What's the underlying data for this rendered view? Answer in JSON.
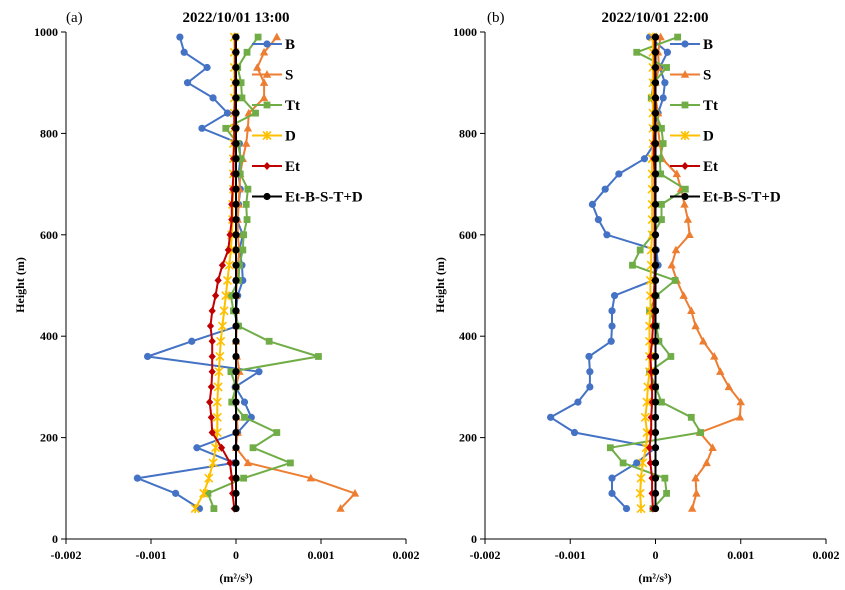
{
  "chart_data": [
    {
      "type": "line",
      "panel_label": "(a)",
      "title": "2022/10/01 13:00",
      "xlabel": "(m²/s³)",
      "ylabel": "Height (m)",
      "xlim": [
        -0.002,
        0.002
      ],
      "ylim": [
        0,
        1000
      ],
      "x_ticks": [
        "-0.002",
        "-0.001",
        "0",
        "0.001",
        "0.002"
      ],
      "y_ticks": [
        "0",
        "200",
        "400",
        "600",
        "800",
        "1000"
      ],
      "grid": false,
      "legend_position": "top-right",
      "heights": [
        60,
        90,
        120,
        150,
        180,
        210,
        240,
        270,
        300,
        330,
        360,
        390,
        420,
        450,
        480,
        510,
        540,
        570,
        600,
        630,
        660,
        690,
        720,
        750,
        780,
        810,
        840,
        870,
        900,
        930,
        960,
        990
      ],
      "series": [
        {
          "name": "B",
          "color": "#4472C4",
          "marker": "circle",
          "values": [
            -0.00043,
            -0.00071,
            -0.00116,
            -2e-05,
            -0.00046,
            2e-05,
            0.00018,
            0.0001,
            -1e-05,
            0.00027,
            -0.00104,
            -0.00052,
            2e-05,
            0.0,
            2e-05,
            8e-05,
            7e-05,
            4e-05,
            8e-05,
            1e-05,
            3e-05,
            5e-05,
            3e-05,
            5e-05,
            4e-05,
            -0.0004,
            -0.0001,
            -0.00027,
            -0.00057,
            -0.00034,
            -0.00061,
            -0.00066
          ]
        },
        {
          "name": "S",
          "color": "#ED7D31",
          "marker": "triangle",
          "values": [
            0.00123,
            0.0014,
            0.00088,
            0.00014,
            0.0,
            2e-05,
            1e-05,
            -1e-05,
            0.0,
            4e-05,
            1e-05,
            0.0,
            1e-05,
            0.0,
            0.0,
            1e-05,
            2e-05,
            4e-05,
            2e-05,
            2e-05,
            3e-05,
            4e-05,
            5e-05,
            8e-05,
            0.00012,
            0.00014,
            0.00015,
            0.00033,
            0.00033,
            0.00025,
            0.00033,
            0.00048
          ]
        },
        {
          "name": "Tt",
          "color": "#70AD47",
          "marker": "square",
          "values": [
            -0.00026,
            -0.00033,
            9e-05,
            0.00064,
            0.0002,
            0.00048,
            0.0001,
            -5e-05,
            0.0,
            -6e-05,
            0.00097,
            0.00039,
            3e-05,
            -3e-05,
            -6e-05,
            3e-05,
            4e-05,
            8e-05,
            9e-05,
            0.00013,
            0.00012,
            0.00014,
            5e-05,
            6e-05,
            2e-05,
            -0.00012,
            0.00023,
            7e-05,
            6e-05,
            2e-05,
            0.00013,
            0.00026
          ]
        },
        {
          "name": "D",
          "color": "#FFC000",
          "marker": "star",
          "values": [
            -0.00048,
            -0.00038,
            -0.00032,
            -0.00027,
            -0.00024,
            -0.00022,
            -0.00022,
            -0.00022,
            -0.00021,
            -0.0002,
            -0.00019,
            -0.00018,
            -0.00016,
            -0.00014,
            -0.00012,
            -0.0001,
            -8e-05,
            -6e-05,
            -5e-05,
            -4e-05,
            -4e-05,
            -3e-05,
            -3e-05,
            -3e-05,
            -3e-05,
            -2e-05,
            -2e-05,
            -2e-05,
            -2e-05,
            -2e-05,
            -2e-05,
            -2e-05
          ]
        },
        {
          "name": "Et",
          "color": "#C00000",
          "marker": "diamond",
          "values": [
            -2e-05,
            -4e-05,
            -5e-05,
            -7e-05,
            -0.00017,
            -0.00028,
            -0.00029,
            -0.00031,
            -0.00029,
            -0.00028,
            -0.00028,
            -0.00028,
            -0.0003,
            -0.00028,
            -0.00024,
            -0.00021,
            -0.00016,
            -9e-05,
            -7e-05,
            -5e-05,
            -5e-05,
            -4e-05,
            -3e-05,
            -3e-05,
            -2e-05,
            -2e-05,
            -2e-05,
            -1e-05,
            -1e-05,
            -1e-05,
            -1e-05,
            -1e-05
          ]
        },
        {
          "name": "Et-B-S-T+D",
          "color": "#000000",
          "marker": "circle",
          "values": [
            0.0,
            0.0,
            0.0,
            0.0,
            0.0,
            0.0,
            0.0,
            0.0,
            0.0,
            0.0,
            0.0,
            0.0,
            0.0,
            0.0,
            0.0,
            0.0,
            0.0,
            0.0,
            0.0,
            0.0,
            0.0,
            0.0,
            0.0,
            0.0,
            0.0,
            0.0,
            0.0,
            0.0,
            0.0,
            0.0,
            0.0,
            0.0
          ]
        }
      ]
    },
    {
      "type": "line",
      "panel_label": "(b)",
      "title": "2022/10/01 22:00",
      "xlabel": "(m²/s³)",
      "ylabel": "Height (m)",
      "xlim": [
        -0.002,
        0.002
      ],
      "ylim": [
        0,
        1000
      ],
      "x_ticks": [
        "-0.002",
        "-0.001",
        "0",
        "0.001",
        "0.002"
      ],
      "y_ticks": [
        "0",
        "200",
        "400",
        "600",
        "800",
        "1000"
      ],
      "grid": false,
      "legend_position": "top-right",
      "heights": [
        60,
        90,
        120,
        150,
        180,
        210,
        240,
        270,
        300,
        330,
        360,
        390,
        420,
        450,
        480,
        510,
        540,
        570,
        600,
        630,
        660,
        690,
        720,
        750,
        780,
        810,
        840,
        870,
        900,
        930,
        960,
        990
      ],
      "series": [
        {
          "name": "B",
          "color": "#4472C4",
          "marker": "circle",
          "values": [
            -0.00034,
            -0.00051,
            -0.00051,
            -0.00022,
            0.0,
            -0.00095,
            -0.00123,
            -0.00091,
            -0.00077,
            -0.00077,
            -0.00078,
            -0.00052,
            -0.00051,
            -0.00051,
            -0.00048,
            -3e-05,
            3e-05,
            1e-05,
            -0.00057,
            -0.00067,
            -0.00074,
            -0.00059,
            -0.00043,
            -0.00013,
            -1e-05,
            -2e-05,
            3e-05,
            9e-05,
            0.00011,
            5e-05,
            0.00014,
            -7e-05
          ]
        },
        {
          "name": "S",
          "color": "#ED7D31",
          "marker": "triangle",
          "values": [
            0.00043,
            0.00048,
            0.00047,
            0.0006,
            0.00067,
            0.00052,
            0.00099,
            0.001,
            0.00086,
            0.00076,
            0.00069,
            0.00056,
            0.00047,
            0.00042,
            0.00033,
            0.00025,
            0.00019,
            0.00024,
            0.0004,
            0.00038,
            0.00034,
            0.0003,
            0.00025,
            8e-05,
            5e-05,
            3e-05,
            3e-05,
            0.0,
            0.0,
            4e-05,
            3e-05,
            6e-05
          ]
        },
        {
          "name": "Tt",
          "color": "#70AD47",
          "marker": "square",
          "values": [
            -3e-05,
            0.00013,
            0.00011,
            -0.00038,
            -0.00053,
            0.00053,
            0.00042,
            7e-05,
            0.0,
            -7e-05,
            0.00018,
            4e-05,
            1e-05,
            -7e-05,
            1e-05,
            0.00023,
            -0.00027,
            -0.00018,
            -3e-05,
            7e-05,
            7e-05,
            0.00035,
            6e-05,
            5e-05,
            9e-05,
            7e-05,
            0.0,
            -5e-05,
            -2e-05,
            0.00013,
            -0.00022,
            0.00026
          ]
        },
        {
          "name": "D",
          "color": "#FFC000",
          "marker": "star",
          "values": [
            -0.00017,
            -0.00018,
            -0.00017,
            -0.00015,
            -0.00011,
            -0.0001,
            -0.00012,
            -0.0001,
            -9e-05,
            -7e-05,
            -7e-05,
            -7e-05,
            -7e-05,
            -6e-05,
            -6e-05,
            -6e-05,
            -5e-05,
            -5e-05,
            -4e-05,
            -4e-05,
            -4e-05,
            -4e-05,
            -4e-05,
            -4e-05,
            -3e-05,
            -3e-05,
            -3e-05,
            -3e-05,
            -3e-05,
            -3e-05,
            -3e-05,
            -3e-05
          ]
        },
        {
          "name": "Et",
          "color": "#C00000",
          "marker": "diamond",
          "values": [
            -3e-05,
            -4e-05,
            -4e-05,
            -6e-05,
            -7e-05,
            -5e-05,
            -5e-05,
            -4e-05,
            -4e-05,
            -5e-05,
            -6e-05,
            -4e-05,
            -3e-05,
            -2e-05,
            -2e-05,
            -1e-05,
            -1e-05,
            -1e-05,
            -1e-05,
            -1e-05,
            -1e-05,
            -1e-05,
            -1e-05,
            -2e-05,
            -2e-05,
            -1e-05,
            -1e-05,
            -1e-05,
            -1e-05,
            -1e-05,
            -1e-05,
            -1e-05
          ]
        },
        {
          "name": "Et-B-S-T+D",
          "color": "#000000",
          "marker": "circle",
          "values": [
            0.0,
            0.0,
            0.0,
            0.0,
            0.0,
            0.0,
            0.0,
            0.0,
            0.0,
            0.0,
            0.0,
            0.0,
            0.0,
            0.0,
            0.0,
            0.0,
            0.0,
            0.0,
            0.0,
            0.0,
            0.0,
            0.0,
            0.0,
            0.0,
            0.0,
            0.0,
            0.0,
            0.0,
            0.0,
            0.0,
            0.0,
            0.0
          ]
        }
      ]
    }
  ]
}
